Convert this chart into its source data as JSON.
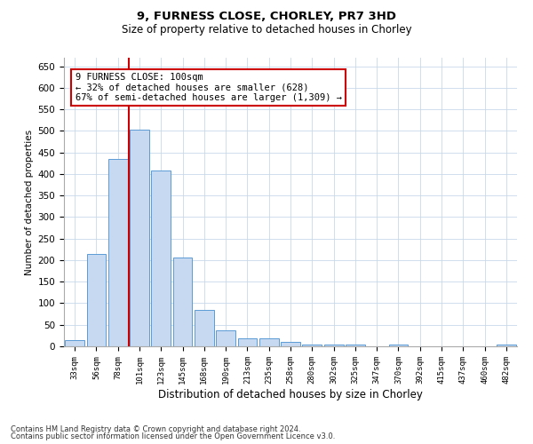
{
  "title1": "9, FURNESS CLOSE, CHORLEY, PR7 3HD",
  "title2": "Size of property relative to detached houses in Chorley",
  "xlabel": "Distribution of detached houses by size in Chorley",
  "ylabel": "Number of detached properties",
  "categories": [
    "33sqm",
    "56sqm",
    "78sqm",
    "101sqm",
    "123sqm",
    "145sqm",
    "168sqm",
    "190sqm",
    "213sqm",
    "235sqm",
    "258sqm",
    "280sqm",
    "302sqm",
    "325sqm",
    "347sqm",
    "370sqm",
    "392sqm",
    "415sqm",
    "437sqm",
    "460sqm",
    "482sqm"
  ],
  "values": [
    15,
    215,
    435,
    502,
    408,
    207,
    85,
    38,
    18,
    18,
    10,
    5,
    5,
    4,
    0,
    4,
    0,
    0,
    0,
    0,
    4
  ],
  "bar_color": "#c6d9f0",
  "bar_edge_color": "#5b9bd5",
  "highlight_index": 3,
  "highlight_line_color": "#cc0000",
  "annotation_line1": "9 FURNESS CLOSE: 100sqm",
  "annotation_line2": "← 32% of detached houses are smaller (628)",
  "annotation_line3": "67% of semi-detached houses are larger (1,309) →",
  "annotation_box_color": "#ffffff",
  "annotation_box_edge": "#cc0000",
  "ylim": [
    0,
    670
  ],
  "yticks": [
    0,
    50,
    100,
    150,
    200,
    250,
    300,
    350,
    400,
    450,
    500,
    550,
    600,
    650
  ],
  "footer1": "Contains HM Land Registry data © Crown copyright and database right 2024.",
  "footer2": "Contains public sector information licensed under the Open Government Licence v3.0.",
  "bg_color": "#ffffff",
  "grid_color": "#c8d8ea"
}
